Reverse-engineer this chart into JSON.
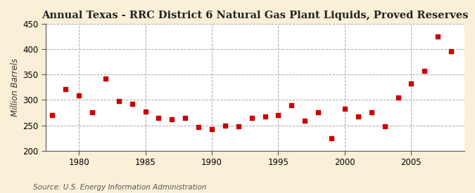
{
  "title": "Annual Texas - RRC District 6 Natural Gas Plant Liquids, Proved Reserves",
  "ylabel": "Million Barrels",
  "source": "Source: U.S. Energy Information Administration",
  "fig_background_color": "#FAF0D7",
  "plot_background_color": "#FFFFFF",
  "years": [
    1978,
    1979,
    1980,
    1981,
    1982,
    1983,
    1984,
    1985,
    1986,
    1987,
    1988,
    1989,
    1990,
    1991,
    1992,
    1993,
    1994,
    1995,
    1996,
    1997,
    1998,
    1999,
    2000,
    2001,
    2002,
    2003,
    2004,
    2005,
    2006,
    2007,
    2008
  ],
  "values": [
    270,
    321,
    309,
    276,
    342,
    298,
    292,
    277,
    264,
    262,
    265,
    247,
    243,
    250,
    248,
    265,
    268,
    270,
    290,
    259,
    276,
    224,
    282,
    267,
    276,
    248,
    305,
    332,
    357,
    425,
    397
  ],
  "marker_color": "#CC0000",
  "marker_size": 18,
  "ylim": [
    200,
    450
  ],
  "xlim": [
    1977.5,
    2009
  ],
  "yticks": [
    200,
    250,
    300,
    350,
    400,
    450
  ],
  "xticks": [
    1980,
    1985,
    1990,
    1995,
    2000,
    2005
  ],
  "title_fontsize": 10.5,
  "ylabel_fontsize": 8.5,
  "tick_fontsize": 8.5,
  "source_fontsize": 7.5
}
